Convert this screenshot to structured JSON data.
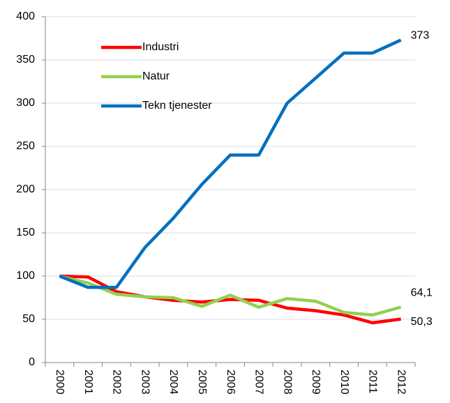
{
  "chart_data": {
    "type": "line",
    "categories": [
      "2000",
      "2001",
      "2002",
      "2003",
      "2004",
      "2005",
      "2006",
      "2007",
      "2008",
      "2009",
      "2010",
      "2011",
      "2012"
    ],
    "series": [
      {
        "name": "Industri",
        "color": "#ff0000",
        "values": [
          100,
          99,
          82,
          76,
          72,
          70,
          73,
          72,
          63,
          60,
          55,
          46,
          50.3
        ],
        "value_labels": [
          null,
          null,
          null,
          null,
          null,
          null,
          null,
          null,
          null,
          null,
          null,
          null,
          "50,3"
        ]
      },
      {
        "name": "Natur",
        "color": "#92d050",
        "values": [
          100,
          92,
          79,
          76,
          75,
          65,
          78,
          64,
          74,
          71,
          58,
          55,
          64.1
        ],
        "value_labels": [
          null,
          null,
          null,
          null,
          null,
          null,
          null,
          null,
          null,
          null,
          null,
          null,
          "64,1"
        ]
      },
      {
        "name": "Tekn tjenester",
        "color": "#0070c0",
        "values": [
          100,
          87,
          87,
          133,
          167,
          206,
          240,
          240,
          300,
          329,
          358,
          358,
          373
        ],
        "value_labels": [
          null,
          null,
          null,
          null,
          null,
          null,
          null,
          null,
          null,
          null,
          null,
          null,
          "373"
        ]
      }
    ],
    "ylim": [
      0,
      400
    ],
    "yticks": [
      0,
      50,
      100,
      150,
      200,
      250,
      300,
      350,
      400
    ],
    "grid": true
  }
}
